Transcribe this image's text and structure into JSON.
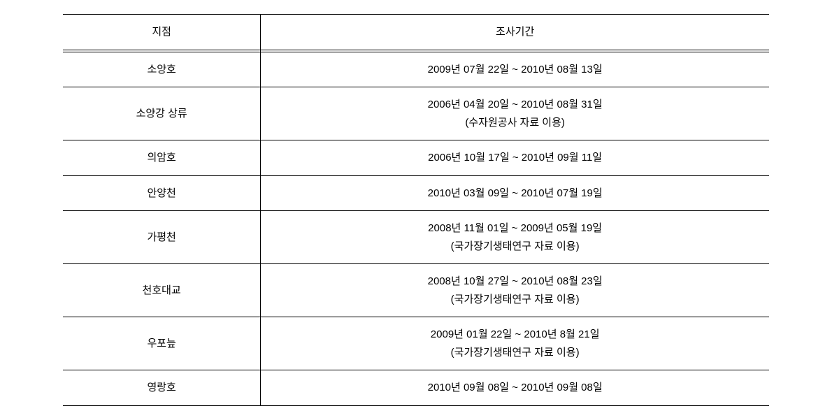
{
  "table": {
    "headers": {
      "location": "지점",
      "period": "조사기간"
    },
    "rows": [
      {
        "location": "소양호",
        "period": "2009년 07월 22일 ~ 2010년 08월 13일",
        "note": null
      },
      {
        "location": "소양강 상류",
        "period": "2006년 04월 20일 ~ 2010년 08월 31일",
        "note": "(수자원공사 자료 이용)"
      },
      {
        "location": "의암호",
        "period": "2006년 10월 17일 ~ 2010년 09월 11일",
        "note": null
      },
      {
        "location": "안양천",
        "period": "2010년 03월 09일 ~ 2010년 07월 19일",
        "note": null
      },
      {
        "location": "가평천",
        "period": "2008년 11월 01일 ~ 2009년 05월 19일",
        "note": "(국가장기생태연구 자료 이용)"
      },
      {
        "location": "천호대교",
        "period": "2008년 10월 27일 ~ 2010년 08월 23일",
        "note": "(국가장기생태연구 자료 이용)"
      },
      {
        "location": "우포늪",
        "period": "2009년 01월 22일 ~ 2010년 8월 21일",
        "note": "(국가장기생태연구 자료 이용)"
      },
      {
        "location": "영랑호",
        "period": "2010년 09월 08일 ~ 2010년 09월 08일",
        "note": null
      }
    ]
  },
  "styles": {
    "font_size": 15,
    "text_color": "#000000",
    "border_color": "#000000",
    "background_color": "#ffffff",
    "col_location_width_pct": 28,
    "col_period_width_pct": 72
  }
}
